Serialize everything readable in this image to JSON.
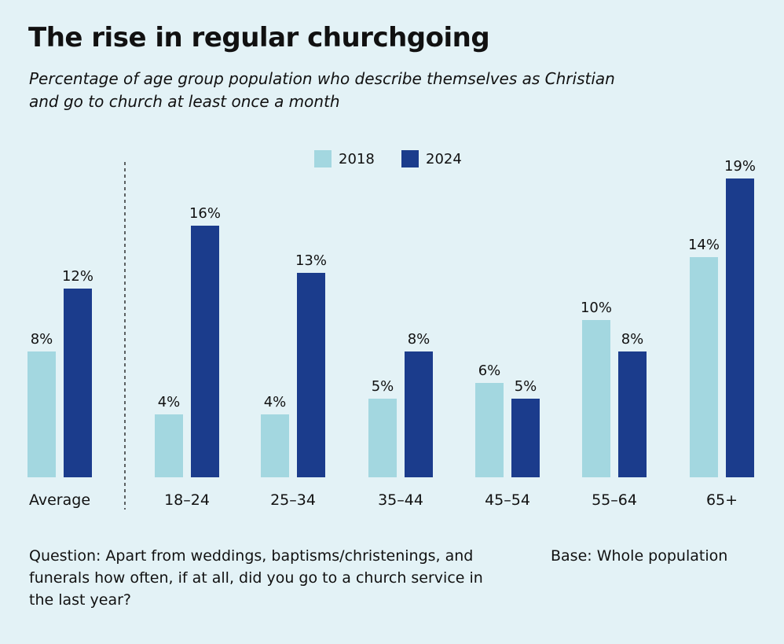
{
  "chart_data": {
    "type": "bar",
    "title": "The rise in regular churchgoing",
    "subtitle": "Percentage of age group population who describe themselves as Christian and go to church at least once a month",
    "categories": [
      "Average",
      "18–24",
      "25–34",
      "35–44",
      "45–54",
      "55–64",
      "65+"
    ],
    "series": [
      {
        "name": "2018",
        "color": "#a3d7e0",
        "values": [
          8,
          4,
          4,
          5,
          6,
          10,
          14
        ]
      },
      {
        "name": "2024",
        "color": "#1b3c8c",
        "values": [
          12,
          16,
          13,
          8,
          5,
          8,
          19
        ]
      }
    ],
    "value_suffix": "%",
    "ylim": [
      0,
      20
    ],
    "grid": false,
    "legend": "top-center",
    "divider_after_category": "Average"
  },
  "footer": {
    "question": "Question: Apart from weddings, baptisms/christenings, and funerals how often, if at all, did you go to a church service in the last year?",
    "base": "Base: Whole population"
  }
}
